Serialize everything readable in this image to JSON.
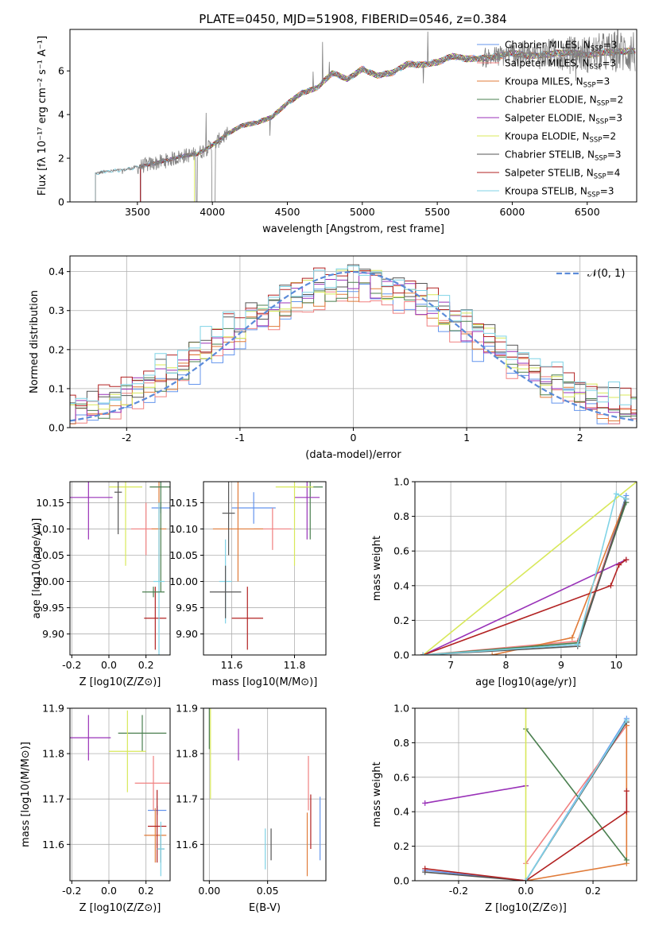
{
  "title": "PLATE=0450, MJD=51908, FIBERID=0546, z=0.384",
  "colors": {
    "series": [
      "#6495ed",
      "#f08080",
      "#e07b39",
      "#4a7f4f",
      "#9932b8",
      "#d8e85a",
      "#555555",
      "#b22222",
      "#7fd3e6"
    ],
    "gauss": "#5b8bd9",
    "grid": "#b0b0b0"
  },
  "legend": [
    {
      "name": "Chabrier MILES",
      "n": "3"
    },
    {
      "name": "Salpeter MILES",
      "n": "3"
    },
    {
      "name": "Kroupa MILES",
      "n": "3"
    },
    {
      "name": "Chabrier ELODIE",
      "n": "2"
    },
    {
      "name": "Salpeter ELODIE",
      "n": "3"
    },
    {
      "name": "Kroupa ELODIE",
      "n": "2"
    },
    {
      "name": "Chabrier STELIB",
      "n": "3"
    },
    {
      "name": "Salpeter STELIB",
      "n": "4"
    },
    {
      "name": "Kroupa STELIB",
      "n": "3"
    }
  ],
  "nssp_label": "N",
  "nssp_sub": "SSP",
  "chart_data": [
    {
      "id": "spectrum",
      "type": "line",
      "xlabel": "wavelength [Angstrom, rest frame]",
      "ylabel": "Flux [fλ 10⁻¹⁷ erg cm⁻² s⁻¹ A⁻¹]",
      "xlim": [
        3050,
        6830
      ],
      "ylim": [
        0,
        7.9
      ],
      "xticks": [
        3500,
        4000,
        4500,
        5000,
        5500,
        6000,
        6500
      ],
      "yticks": [
        0,
        2,
        4,
        6
      ],
      "continuum": {
        "x": [
          3220,
          3300,
          3400,
          3500,
          3600,
          3700,
          3800,
          3900,
          4000,
          4100,
          4200,
          4300,
          4400,
          4500,
          4600,
          4700,
          4800,
          4900,
          5000,
          5100,
          5200,
          5300,
          5400,
          5500,
          5600,
          5700,
          5800,
          5900,
          6000,
          6100,
          6200,
          6300,
          6400,
          6500,
          6600,
          6700,
          6800
        ],
        "y": [
          1.3,
          1.4,
          1.45,
          1.6,
          1.75,
          1.9,
          2.1,
          2.2,
          2.6,
          3.1,
          3.5,
          3.65,
          3.9,
          4.5,
          5.0,
          5.25,
          5.9,
          5.6,
          6.1,
          5.8,
          5.9,
          6.3,
          6.3,
          6.4,
          6.65,
          6.55,
          6.6,
          6.65,
          6.8,
          6.7,
          6.75,
          6.8,
          6.8,
          6.75,
          6.85,
          6.85,
          6.9
        ]
      }
    },
    {
      "id": "residuals",
      "type": "line",
      "xlabel": "(data-model)/error",
      "ylabel": "Normed distribution",
      "xlim": [
        -2.5,
        2.5
      ],
      "ylim": [
        0,
        0.44
      ],
      "xticks": [
        -2,
        -1,
        0,
        1,
        2
      ],
      "yticks": [
        0.0,
        0.1,
        0.2,
        0.3,
        0.4
      ],
      "gauss_label": "𝒩(0, 1)"
    },
    {
      "id": "age_vs_Z",
      "type": "scatter",
      "xlabel": "Z [log10(Z/Z⊙)]",
      "ylabel": "age  [log10(age/yr)]",
      "xlim": [
        -0.21,
        0.33
      ],
      "ylim": [
        9.86,
        10.19
      ],
      "xticks": [
        -0.2,
        0.0,
        0.2
      ],
      "yticks": [
        9.9,
        9.95,
        10.0,
        10.05,
        10.1,
        10.15
      ],
      "points": [
        {
          "s": 0,
          "x": 0.28,
          "y": 10.14,
          "xe": 0.05,
          "ye": 0.01
        },
        {
          "s": 1,
          "x": 0.2,
          "y": 10.1,
          "xe": 0.08,
          "ye": 0.05
        },
        {
          "s": 2,
          "x": 0.27,
          "y": 10.1,
          "xe": 0.04,
          "ye": 0.1
        },
        {
          "s": 3,
          "x": 0.28,
          "y": 10.18,
          "xe": 0.06,
          "ye": 0.2
        },
        {
          "s": 4,
          "x": -0.11,
          "y": 10.16,
          "xe": 0.13,
          "ye": 0.08
        },
        {
          "s": 5,
          "x": 0.09,
          "y": 10.18,
          "xe": 0.09,
          "ye": 0.15
        },
        {
          "s": 6,
          "x": 0.05,
          "y": 10.17,
          "xe": 0.02,
          "ye": 0.08
        },
        {
          "s": 7,
          "x": 0.25,
          "y": 9.93,
          "xe": 0.06,
          "ye": 0.06
        },
        {
          "s": 8,
          "x": 0.27,
          "y": 10.0,
          "xe": 0.03,
          "ye": 0.15
        },
        {
          "s": 3,
          "x": 0.24,
          "y": 9.98,
          "xe": 0.06,
          "ye": 0.01
        }
      ]
    },
    {
      "id": "age_vs_mass",
      "type": "scatter",
      "xlabel": "mass [log10(M/M⊙)]",
      "ylabel": "",
      "xlim": [
        11.51,
        11.9
      ],
      "ylim": [
        9.86,
        10.19
      ],
      "xticks": [
        11.6,
        11.8
      ],
      "yticks": [
        9.9,
        9.95,
        10.0,
        10.05,
        10.1,
        10.15
      ],
      "points": [
        {
          "s": 0,
          "x": 11.67,
          "y": 10.14,
          "xe": 0.07,
          "ye": 0.03
        },
        {
          "s": 1,
          "x": 11.73,
          "y": 10.1,
          "xe": 0.06,
          "ye": 0.04
        },
        {
          "s": 2,
          "x": 11.62,
          "y": 10.1,
          "xe": 0.08,
          "ye": 0.1
        },
        {
          "s": 3,
          "x": 11.85,
          "y": 10.18,
          "xe": 0.04,
          "ye": 0.1
        },
        {
          "s": 4,
          "x": 11.84,
          "y": 10.16,
          "xe": 0.04,
          "ye": 0.08
        },
        {
          "s": 5,
          "x": 11.8,
          "y": 10.18,
          "xe": 0.06,
          "ye": 0.15
        },
        {
          "s": 6,
          "x": 11.59,
          "y": 10.13,
          "xe": 0.02,
          "ye": 0.08
        },
        {
          "s": 7,
          "x": 11.65,
          "y": 9.93,
          "xe": 0.05,
          "ye": 0.06
        },
        {
          "s": 8,
          "x": 11.58,
          "y": 10.0,
          "xe": 0.02,
          "ye": 0.08
        },
        {
          "s": 6,
          "x": 11.58,
          "y": 9.98,
          "xe": 0.05,
          "ye": 0.05
        }
      ]
    },
    {
      "id": "mass_weight_vs_age",
      "type": "line",
      "xlabel": "age  [log10(age/yr)]",
      "ylabel": "mass weight",
      "xlim": [
        6.35,
        10.37
      ],
      "ylim": [
        0,
        1.0
      ],
      "xticks": [
        7,
        8,
        9,
        10
      ],
      "yticks": [
        0.0,
        0.2,
        0.4,
        0.6,
        0.8,
        1.0
      ],
      "series": [
        {
          "s": 0,
          "x": [
            6.5,
            9.3,
            10.18
          ],
          "y": [
            0.0,
            0.06,
            0.92
          ]
        },
        {
          "s": 1,
          "x": [
            6.5,
            9.3,
            10.18
          ],
          "y": [
            0.0,
            0.08,
            0.9
          ]
        },
        {
          "s": 2,
          "x": [
            7.75,
            9.2,
            10.18
          ],
          "y": [
            0.0,
            0.1,
            0.9
          ]
        },
        {
          "s": 3,
          "x": [
            6.5,
            9.3,
            10.18
          ],
          "y": [
            0.0,
            0.07,
            0.88
          ]
        },
        {
          "s": 4,
          "x": [
            6.5,
            10.18
          ],
          "y": [
            0.0,
            0.55
          ]
        },
        {
          "s": 5,
          "x": [
            6.5,
            10.37
          ],
          "y": [
            0.0,
            1.0
          ]
        },
        {
          "s": 6,
          "x": [
            6.5,
            9.3,
            10.18
          ],
          "y": [
            0.0,
            0.05,
            0.9
          ]
        },
        {
          "s": 7,
          "x": [
            6.5,
            9.9,
            10.05,
            10.18
          ],
          "y": [
            0.0,
            0.4,
            0.52,
            0.55
          ]
        },
        {
          "s": 8,
          "x": [
            6.5,
            9.3,
            10.0,
            10.18
          ],
          "y": [
            0.0,
            0.06,
            0.93,
            0.9
          ]
        }
      ]
    },
    {
      "id": "mass_vs_Z",
      "type": "scatter",
      "xlabel": "Z [log10(Z/Z⊙)]",
      "ylabel": "mass [log10(M/M⊙)]",
      "xlim": [
        -0.21,
        0.33
      ],
      "ylim": [
        11.52,
        11.9
      ],
      "xticks": [
        -0.2,
        0.0,
        0.2
      ],
      "yticks": [
        11.6,
        11.7,
        11.8,
        11.9
      ],
      "points": [
        {
          "s": 0,
          "x": 0.26,
          "y": 11.675,
          "xe": 0.05,
          "ye": 0.01
        },
        {
          "s": 1,
          "x": 0.24,
          "y": 11.735,
          "xe": 0.1,
          "ye": 0.06
        },
        {
          "s": 2,
          "x": 0.25,
          "y": 11.62,
          "xe": 0.06,
          "ye": 0.06
        },
        {
          "s": 3,
          "x": 0.18,
          "y": 11.845,
          "xe": 0.13,
          "ye": 0.04
        },
        {
          "s": 4,
          "x": -0.11,
          "y": 11.835,
          "xe": 0.12,
          "ye": 0.05
        },
        {
          "s": 5,
          "x": 0.1,
          "y": 11.805,
          "xe": 0.1,
          "ye": 0.09
        },
        {
          "s": 6,
          "x": 0.28,
          "y": 11.59,
          "xe": 0.02,
          "ye": 0.03
        },
        {
          "s": 7,
          "x": 0.26,
          "y": 11.64,
          "xe": 0.05,
          "ye": 0.08
        },
        {
          "s": 8,
          "x": 0.28,
          "y": 11.59,
          "xe": 0.02,
          "ye": 0.06
        }
      ]
    },
    {
      "id": "mass_vs_ebv",
      "type": "scatter",
      "xlabel": "E(B-V)",
      "ylabel": "",
      "xlim": [
        -0.005,
        0.1
      ],
      "ylim": [
        11.52,
        11.9
      ],
      "xticks": [
        0.0,
        0.05
      ],
      "yticks": [
        11.6,
        11.7,
        11.8,
        11.9
      ],
      "points": [
        {
          "s": 0,
          "x": 0.095,
          "y": 11.635,
          "xe": 0,
          "ye": 0.07
        },
        {
          "s": 1,
          "x": 0.085,
          "y": 11.735,
          "xe": 0,
          "ye": 0.06
        },
        {
          "s": 2,
          "x": 0.084,
          "y": 11.6,
          "xe": 0,
          "ye": 0.07
        },
        {
          "s": 3,
          "x": 0.0,
          "y": 11.86,
          "xe": 0,
          "ye": 0.05
        },
        {
          "s": 4,
          "x": 0.025,
          "y": 11.82,
          "xe": 0,
          "ye": 0.035
        },
        {
          "s": 5,
          "x": 0.001,
          "y": 11.8,
          "xe": 0,
          "ye": 0.1
        },
        {
          "s": 6,
          "x": 0.053,
          "y": 11.6,
          "xe": 0,
          "ye": 0.035
        },
        {
          "s": 7,
          "x": 0.087,
          "y": 11.65,
          "xe": 0,
          "ye": 0.06
        },
        {
          "s": 8,
          "x": 0.048,
          "y": 11.59,
          "xe": 0,
          "ye": 0.045
        }
      ]
    },
    {
      "id": "mass_weight_vs_Z",
      "type": "line",
      "xlabel": "Z [log10(Z/Z⊙)]",
      "ylabel": "mass weight",
      "xlim": [
        -0.33,
        0.33
      ],
      "ylim": [
        0,
        1.0
      ],
      "xticks": [
        -0.2,
        0.0,
        0.2
      ],
      "yticks": [
        0.0,
        0.2,
        0.4,
        0.6,
        0.8,
        1.0
      ],
      "series": [
        {
          "s": 0,
          "x": [
            -0.3,
            0.0,
            0.3
          ],
          "y": [
            0.06,
            0.0,
            0.94
          ]
        },
        {
          "s": 1,
          "x": [
            0.0,
            0.3
          ],
          "y": [
            0.1,
            0.9
          ]
        },
        {
          "s": 2,
          "x": [
            0.0,
            0.3,
            0.3
          ],
          "y": [
            0.0,
            0.1,
            0.9
          ]
        },
        {
          "s": 3,
          "x": [
            0.0,
            0.3
          ],
          "y": [
            0.88,
            0.12
          ]
        },
        {
          "s": 4,
          "x": [
            -0.3,
            0.0
          ],
          "y": [
            0.45,
            0.55
          ]
        },
        {
          "s": 5,
          "x": [
            0.0,
            0.0
          ],
          "y": [
            0.0,
            1.0
          ]
        },
        {
          "s": 6,
          "x": [
            -0.3,
            0.0,
            0.3
          ],
          "y": [
            0.05,
            0.0,
            0.92
          ]
        },
        {
          "s": 7,
          "x": [
            -0.3,
            0.0,
            0.3,
            0.3
          ],
          "y": [
            0.07,
            0.0,
            0.4,
            0.52
          ]
        },
        {
          "s": 8,
          "x": [
            0.0,
            0.3
          ],
          "y": [
            0.0,
            0.93
          ]
        }
      ]
    }
  ]
}
